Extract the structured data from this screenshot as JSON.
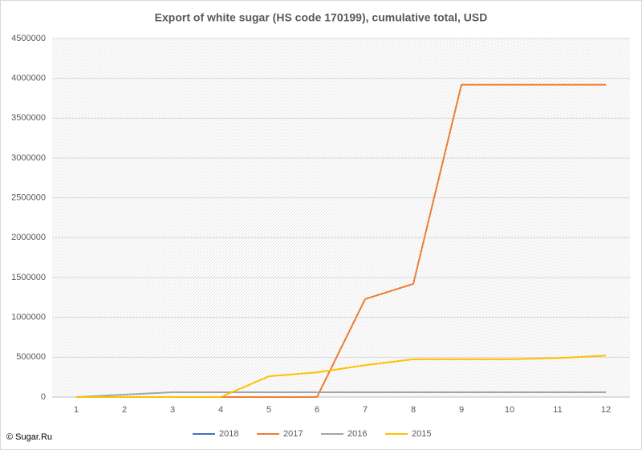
{
  "chart_data": {
    "type": "line",
    "title": "Export of white sugar (HS code 170199), cumulative total, USD",
    "source": "© Sugar.Ru",
    "categories": [
      "1",
      "2",
      "3",
      "4",
      "5",
      "6",
      "7",
      "8",
      "9",
      "10",
      "11",
      "12"
    ],
    "series": [
      {
        "name": "2018",
        "color": "#4472c4",
        "values": [
          0,
          null,
          null,
          null,
          null,
          null,
          null,
          null,
          null,
          null,
          null,
          null
        ]
      },
      {
        "name": "2017",
        "color": "#ed7d31",
        "values": [
          0,
          0,
          0,
          0,
          0,
          0,
          1230000,
          1420000,
          3920000,
          3920000,
          3920000,
          3920000
        ]
      },
      {
        "name": "2016",
        "color": "#a5a5a5",
        "values": [
          0,
          30000,
          60000,
          60000,
          60000,
          60000,
          60000,
          60000,
          60000,
          60000,
          60000,
          60000
        ]
      },
      {
        "name": "2015",
        "color": "#ffc000",
        "values": [
          0,
          0,
          0,
          0,
          260000,
          310000,
          400000,
          475000,
          475000,
          475000,
          490000,
          520000
        ]
      }
    ],
    "ylim": [
      0,
      4500000
    ],
    "yticks": [
      0,
      500000,
      1000000,
      1500000,
      2000000,
      2500000,
      3000000,
      3500000,
      4000000,
      4500000
    ],
    "grid": true
  }
}
